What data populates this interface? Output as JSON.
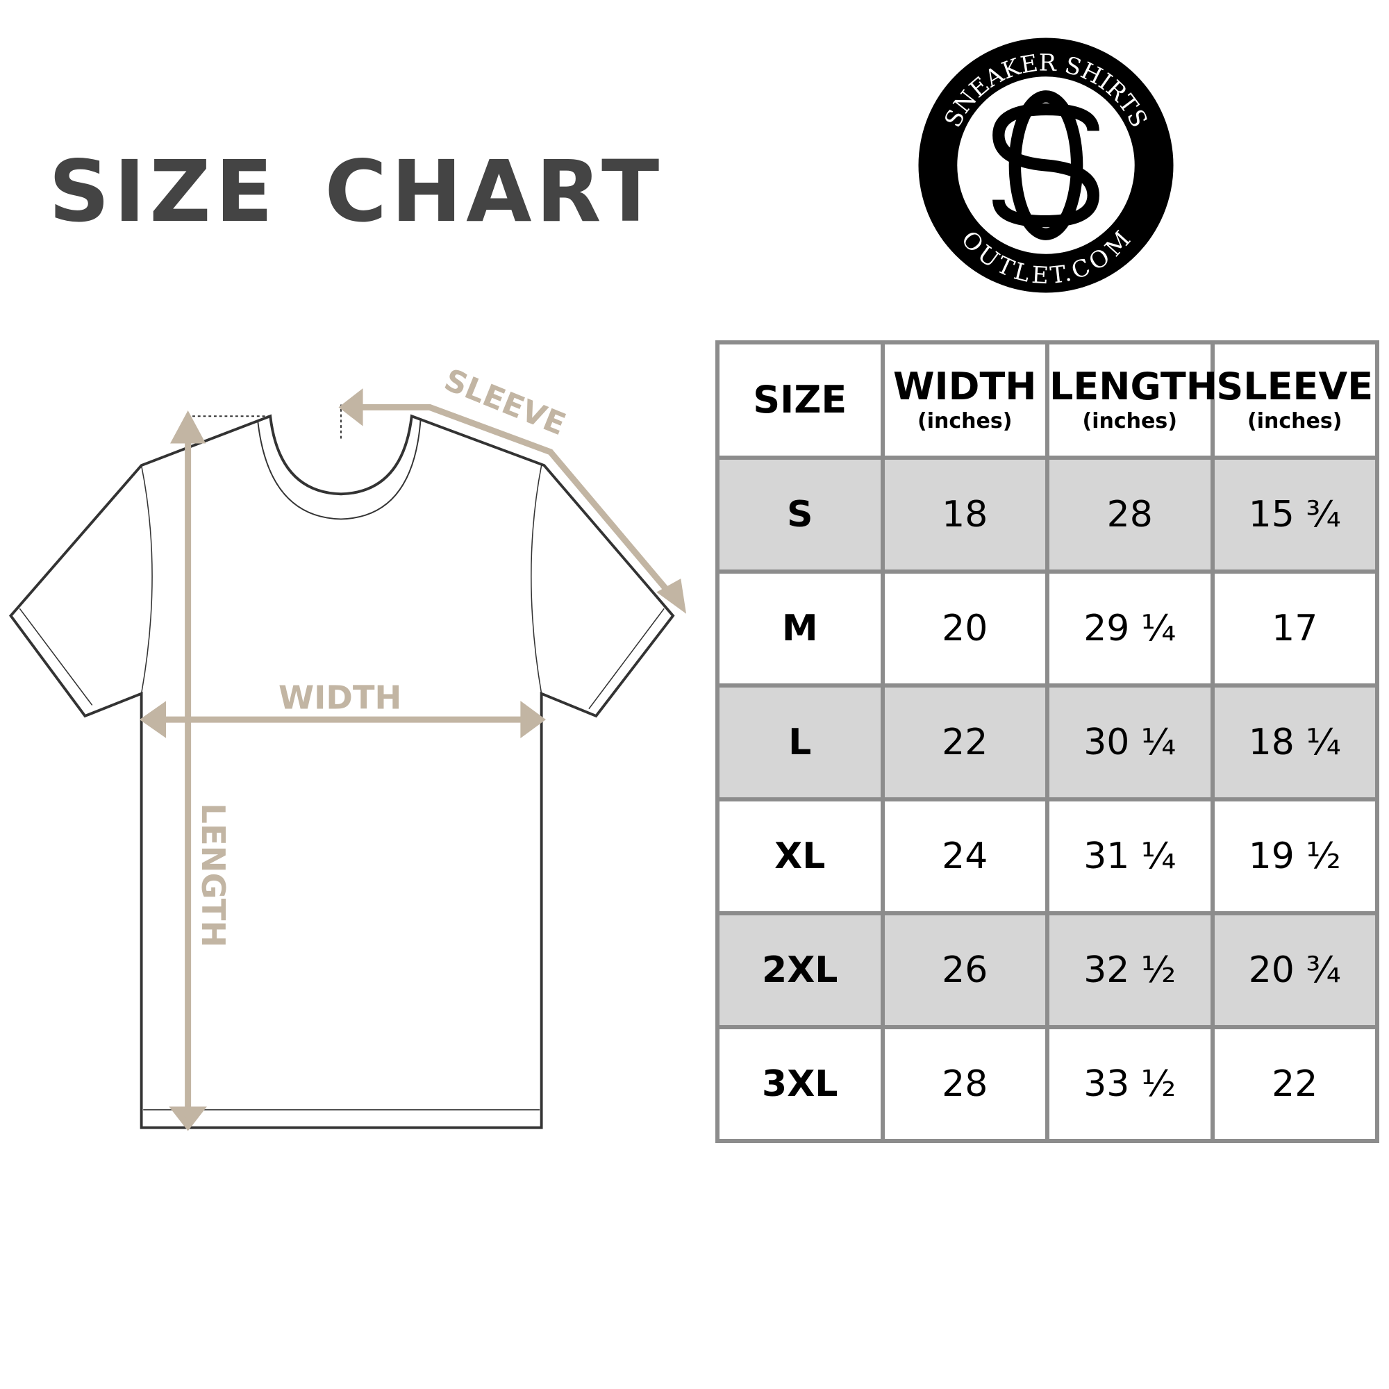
{
  "title": "SIZE CHART",
  "logo": {
    "top_text": "SNEAKER SHIRTS",
    "bottom_text": "OUTLET.COM",
    "monogram": "SO"
  },
  "diagram": {
    "sleeve_label": "SLEEVE",
    "width_label": "WIDTH",
    "length_label": "LENGTH",
    "accent_color": "#c2b5a3"
  },
  "table": {
    "headers": [
      {
        "label": "SIZE",
        "unit": ""
      },
      {
        "label": "WIDTH",
        "unit": "(inches)"
      },
      {
        "label": "LENGTH",
        "unit": "(inches)"
      },
      {
        "label": "SLEEVE",
        "unit": "(inches)"
      }
    ],
    "rows": [
      [
        "S",
        "18",
        "28",
        "15 ¾"
      ],
      [
        "M",
        "20",
        "29 ¼",
        "17"
      ],
      [
        "L",
        "22",
        "30 ¼",
        "18 ¼"
      ],
      [
        "XL",
        "24",
        "31 ¼",
        "19 ½"
      ],
      [
        "2XL",
        "26",
        "32 ½",
        "20 ¾"
      ],
      [
        "3XL",
        "28",
        "33 ½",
        "22"
      ]
    ],
    "shade_color": "#d6d6d6",
    "border_color": "#8c8c8c"
  }
}
